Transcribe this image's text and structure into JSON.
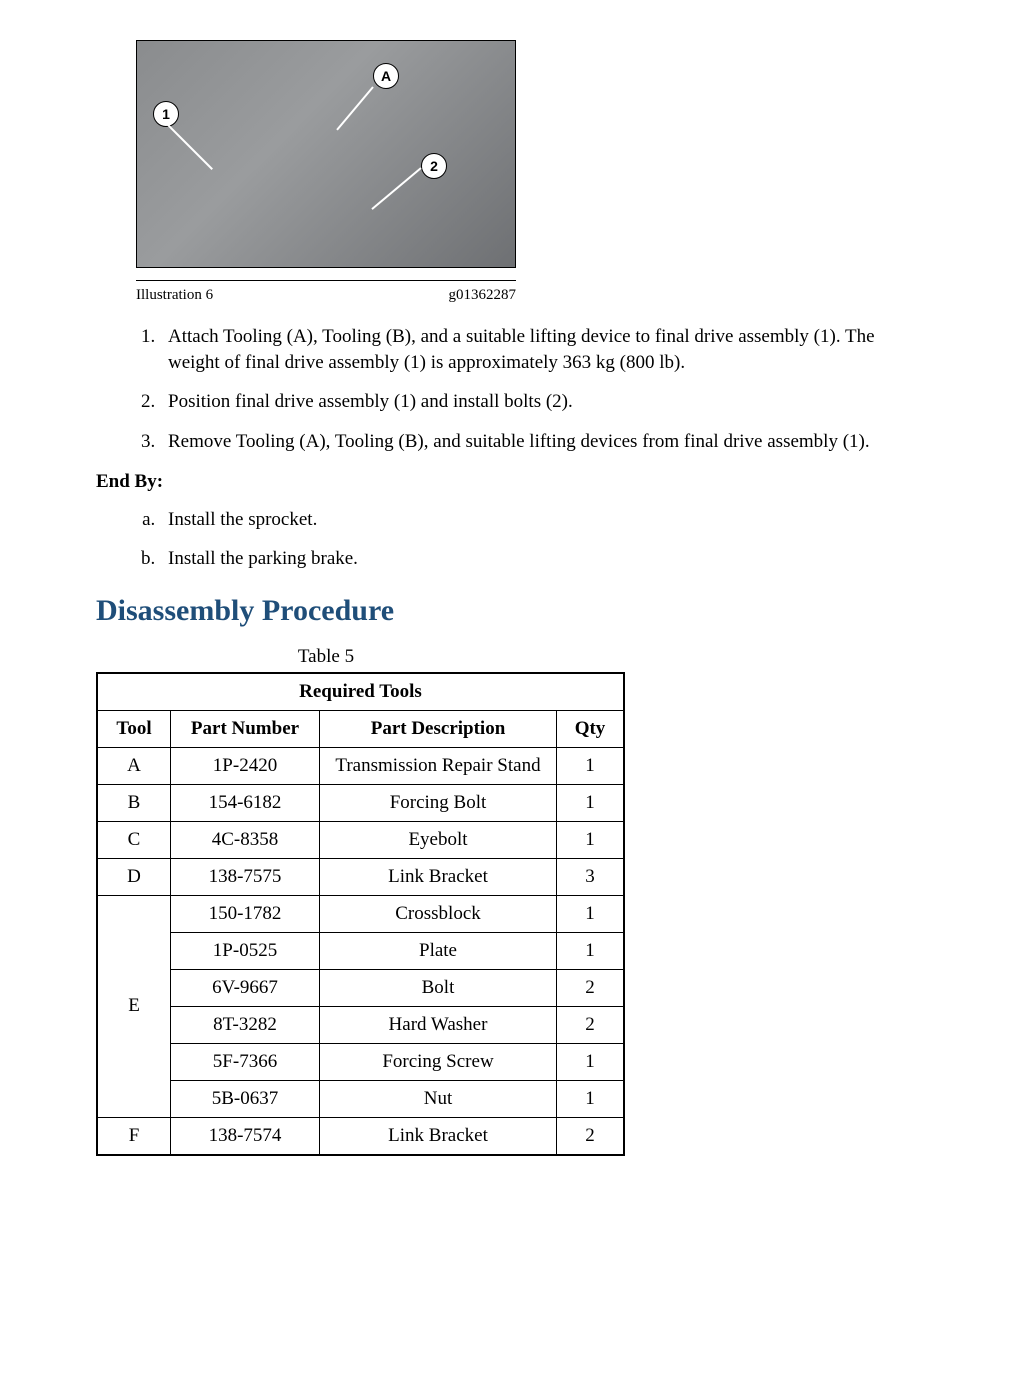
{
  "illustration": {
    "label": "Illustration 6",
    "gcode": "g01362287",
    "callouts": {
      "a": "A",
      "c1": "1",
      "c2": "2"
    }
  },
  "steps": [
    "Attach Tooling (A), Tooling (B), and a suitable lifting device to final drive assembly (1). The weight of final drive assembly (1) is approximately 363 kg (800 lb).",
    "Position final drive assembly (1) and install bolts (2).",
    "Remove Tooling (A), Tooling (B), and suitable lifting devices from final drive assembly (1)."
  ],
  "end_by": {
    "label": "End By:",
    "items": [
      "Install the sprocket.",
      "Install the parking brake."
    ]
  },
  "section_heading": "Disassembly Procedure",
  "table": {
    "caption": "Table 5",
    "title": "Required Tools",
    "columns": [
      "Tool",
      "Part Number",
      "Part Description",
      "Qty"
    ],
    "rows": [
      {
        "tool": "A",
        "rowspan": 1,
        "pn": "1P-2420",
        "desc": "Transmission Repair Stand",
        "qty": "1"
      },
      {
        "tool": "B",
        "rowspan": 1,
        "pn": "154-6182",
        "desc": "Forcing Bolt",
        "qty": "1"
      },
      {
        "tool": "C",
        "rowspan": 1,
        "pn": "4C-8358",
        "desc": "Eyebolt",
        "qty": "1"
      },
      {
        "tool": "D",
        "rowspan": 1,
        "pn": "138-7575",
        "desc": "Link Bracket",
        "qty": "3"
      },
      {
        "tool": "E",
        "rowspan": 6,
        "pn": "150-1782",
        "desc": "Crossblock",
        "qty": "1"
      },
      {
        "tool": "",
        "rowspan": 0,
        "pn": "1P-0525",
        "desc": "Plate",
        "qty": "1"
      },
      {
        "tool": "",
        "rowspan": 0,
        "pn": "6V-9667",
        "desc": "Bolt",
        "qty": "2"
      },
      {
        "tool": "",
        "rowspan": 0,
        "pn": "8T-3282",
        "desc": "Hard Washer",
        "qty": "2"
      },
      {
        "tool": "",
        "rowspan": 0,
        "pn": "5F-7366",
        "desc": "Forcing Screw",
        "qty": "1"
      },
      {
        "tool": "",
        "rowspan": 0,
        "pn": "5B-0637",
        "desc": "Nut",
        "qty": "1"
      },
      {
        "tool": "F",
        "rowspan": 1,
        "pn": "138-7574",
        "desc": "Link Bracket",
        "qty": "2"
      }
    ]
  },
  "colors": {
    "heading": "#1f4e79",
    "text": "#000000",
    "background": "#ffffff"
  }
}
